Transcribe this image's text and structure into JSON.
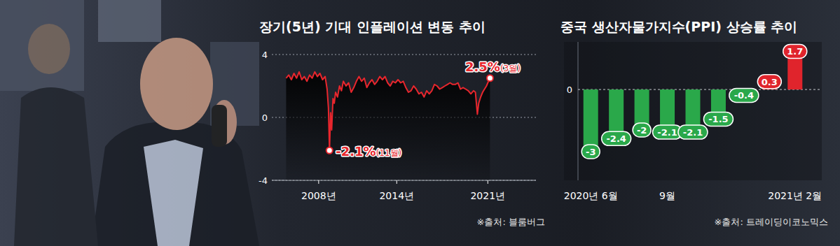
{
  "chart_data": [
    {
      "type": "line",
      "title": "장기(5년) 기대 인플레이션 변동 추이",
      "source": "※출처: 블룸버그",
      "x": [
        2005.5,
        2005.7,
        2005.9,
        2006.1,
        2006.3,
        2006.5,
        2006.7,
        2006.9,
        2007.1,
        2007.3,
        2007.5,
        2007.7,
        2007.9,
        2008.1,
        2008.3,
        2008.5,
        2008.65,
        2008.75,
        2008.83,
        2008.92,
        2009.0,
        2009.1,
        2009.2,
        2009.3,
        2009.45,
        2009.6,
        2009.75,
        2009.9,
        2010.1,
        2010.3,
        2010.5,
        2010.7,
        2010.9,
        2011.1,
        2011.3,
        2011.5,
        2011.7,
        2011.9,
        2012.1,
        2012.3,
        2012.5,
        2012.7,
        2012.9,
        2013.1,
        2013.3,
        2013.5,
        2013.7,
        2013.9,
        2014.1,
        2014.3,
        2014.5,
        2014.7,
        2014.9,
        2015.1,
        2015.3,
        2015.5,
        2015.7,
        2015.9,
        2016.1,
        2016.3,
        2016.5,
        2016.7,
        2016.9,
        2017.1,
        2017.3,
        2017.5,
        2017.7,
        2017.9,
        2018.1,
        2018.3,
        2018.5,
        2018.7,
        2018.9,
        2019.1,
        2019.3,
        2019.5,
        2019.7,
        2019.9,
        2020.05,
        2020.2,
        2020.3,
        2020.45,
        2020.6,
        2020.75,
        2020.9,
        2021.0,
        2021.17
      ],
      "values": [
        2.5,
        2.7,
        2.4,
        2.8,
        2.5,
        2.9,
        2.4,
        2.6,
        2.3,
        2.7,
        2.5,
        2.9,
        2.6,
        2.8,
        2.4,
        2.6,
        1.8,
        0.6,
        -2.1,
        0.3,
        -0.8,
        1.2,
        0.9,
        1.6,
        1.3,
        2.0,
        1.7,
        2.3,
        2.0,
        2.2,
        1.6,
        1.9,
        2.3,
        2.6,
        2.3,
        2.5,
        1.9,
        2.2,
        2.4,
        2.1,
        2.3,
        2.6,
        2.4,
        2.6,
        2.2,
        2.0,
        2.3,
        2.2,
        2.4,
        2.2,
        2.3,
        1.9,
        1.6,
        1.7,
        2.0,
        1.8,
        1.5,
        1.6,
        1.3,
        1.7,
        1.5,
        1.7,
        2.1,
        2.0,
        1.8,
        1.9,
        2.0,
        2.1,
        2.2,
        2.1,
        2.1,
        2.2,
        1.8,
        1.9,
        1.8,
        1.7,
        1.5,
        1.7,
        1.6,
        0.2,
        0.9,
        1.3,
        1.6,
        1.8,
        2.0,
        2.2,
        2.5
      ],
      "color": "#e8262d",
      "xlim": [
        2004.4,
        2024.7
      ],
      "xticks": [
        {
          "value": 2008,
          "label": "2008년"
        },
        {
          "value": 2014,
          "label": "2014년"
        },
        {
          "value": 2021,
          "label": "2021년"
        }
      ],
      "ylim": [
        -4,
        4
      ],
      "yticks": [
        -4,
        0,
        4
      ],
      "grid": true,
      "annotations": [
        {
          "label": "-2.1%",
          "note": "(11월)",
          "x": 2008.83,
          "y": -2.1
        },
        {
          "label": "2.5%",
          "note": "(3월)",
          "x": 2021.17,
          "y": 2.5
        }
      ]
    },
    {
      "type": "bar",
      "title": "중국 생산자물가지수(PPI) 상승률 추이",
      "source": "※출처: 트레이딩이코노믹스",
      "categories": [
        "2020년 6월",
        null,
        null,
        "9월",
        null,
        null,
        null,
        null,
        "2021년 2월"
      ],
      "values": [
        -3,
        -2.4,
        -2,
        -2.1,
        -2.1,
        -1.5,
        -0.4,
        0.3,
        1.7
      ],
      "colors": [
        "#2aa84a",
        "#2aa84a",
        "#2aa84a",
        "#2aa84a",
        "#2aa84a",
        "#2aa84a",
        "#2aa84a",
        "#e0242c",
        "#e0242c"
      ],
      "ylim": [
        -4.2,
        2.2
      ],
      "yticks": [
        0
      ],
      "grid": true,
      "data_labels": true
    }
  ]
}
